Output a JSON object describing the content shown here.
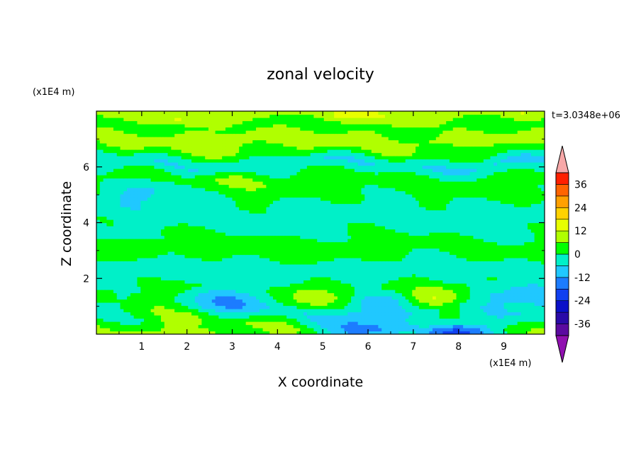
{
  "chart_data": {
    "type": "heatmap",
    "title": "zonal velocity",
    "xlabel": "X coordinate",
    "ylabel": "Z coordinate",
    "x_unit": "(x1E4 m)",
    "y_unit": "(x1E4 m)",
    "time_label": "t=3.0348e+06",
    "xlim": [
      0,
      9.9
    ],
    "ylim": [
      0,
      8
    ],
    "x_ticks": [
      "1",
      "2",
      "3",
      "4",
      "5",
      "6",
      "7",
      "8",
      "9"
    ],
    "y_ticks": [
      "2",
      "4",
      "6"
    ],
    "colorbar": {
      "levels": [
        -42,
        -36,
        -30,
        -24,
        -18,
        -12,
        -6,
        0,
        6,
        12,
        18,
        24,
        30,
        36,
        42
      ],
      "tick_labels": [
        "36",
        "24",
        "12",
        "0",
        "-12",
        "-24",
        "-36"
      ],
      "tick_values": [
        36,
        24,
        12,
        0,
        -12,
        -24,
        -36
      ],
      "colors": [
        "#5b0aa0",
        "#2a0aa8",
        "#0a10c8",
        "#1040f0",
        "#1c7cff",
        "#20c8ff",
        "#00f0c8",
        "#00ff00",
        "#b0ff00",
        "#e8ff00",
        "#ffd200",
        "#ffa000",
        "#ff6400",
        "#ff2000"
      ],
      "extend_low_color": "#9010b0",
      "extend_high_color": "#f7a8a8"
    },
    "bands": [
      {
        "z": 7.85,
        "value": 10
      },
      {
        "z": 7.5,
        "value": 2
      },
      {
        "z": 7.05,
        "value": 8
      },
      {
        "z": 6.6,
        "value": 5
      },
      {
        "z": 6.1,
        "value": -6
      },
      {
        "z": 5.6,
        "value": 3
      },
      {
        "z": 5.0,
        "value": 1
      },
      {
        "z": 4.4,
        "value": -3
      },
      {
        "z": 3.7,
        "value": -1
      },
      {
        "z": 3.0,
        "value": 3
      },
      {
        "z": 2.3,
        "value": -4
      },
      {
        "z": 1.6,
        "value": 2
      },
      {
        "z": 0.8,
        "value": -6
      },
      {
        "z": 0.2,
        "value": 6
      }
    ],
    "features": [
      {
        "x": 7.4,
        "z": 1.25,
        "value": 12
      },
      {
        "x": 4.7,
        "z": 1.3,
        "value": 10
      },
      {
        "x": 1.5,
        "z": 0.7,
        "value": 8
      },
      {
        "x": 3.1,
        "z": 1.3,
        "value": -12
      },
      {
        "x": 6.3,
        "z": 1.2,
        "value": -11
      },
      {
        "x": 5.8,
        "z": 0.1,
        "value": -14
      },
      {
        "x": 8.0,
        "z": 0.05,
        "value": -22
      },
      {
        "x": 2.6,
        "z": 7.1,
        "value": 11
      },
      {
        "x": 6.2,
        "z": 7.95,
        "value": 13
      },
      {
        "x": 5.2,
        "z": 6.9,
        "value": 9
      },
      {
        "x": 4.2,
        "z": 3.1,
        "value": 5
      },
      {
        "x": 9.4,
        "z": 1.4,
        "value": -11
      },
      {
        "x": 3.2,
        "z": 5.6,
        "value": 8
      },
      {
        "x": 1.1,
        "z": 5.1,
        "value": -7
      },
      {
        "x": 8.8,
        "z": 6.1,
        "value": -8
      }
    ]
  }
}
